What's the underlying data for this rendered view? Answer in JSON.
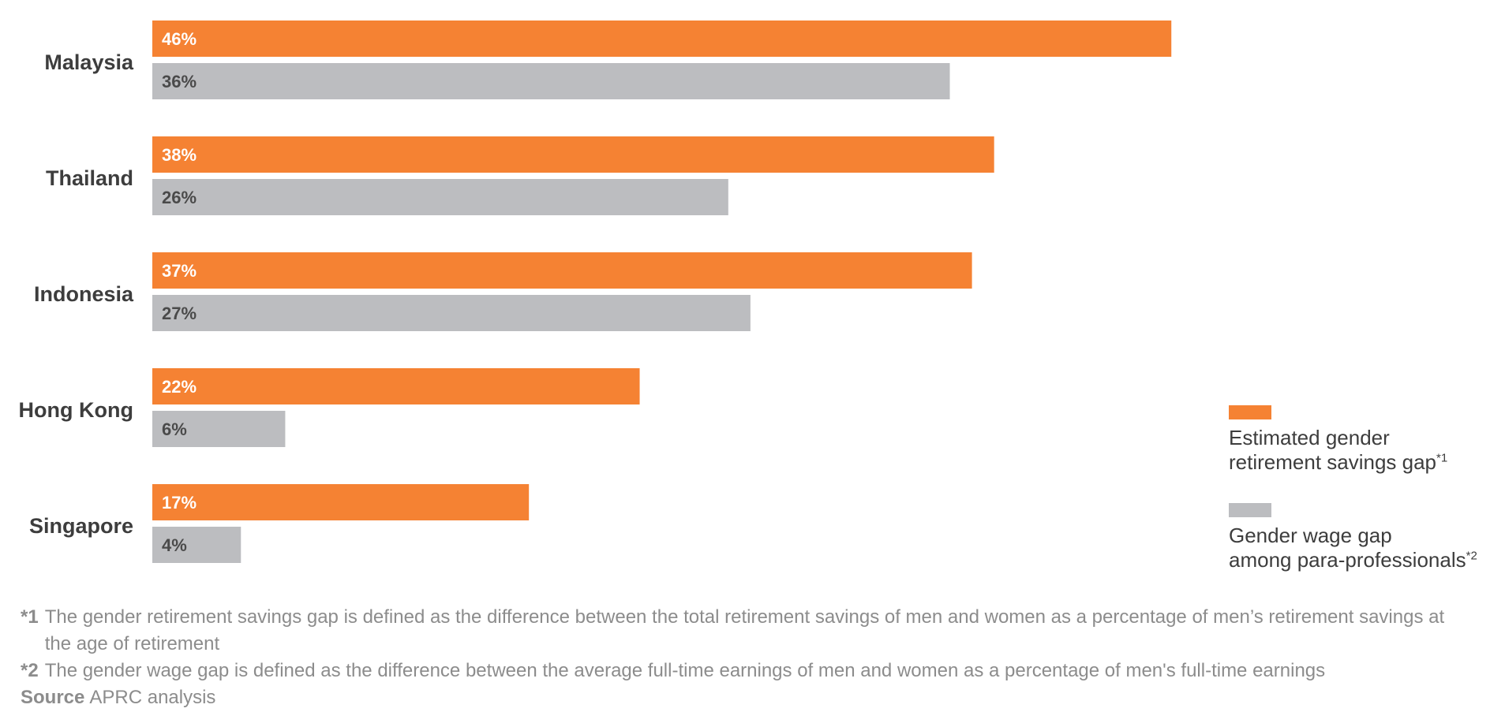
{
  "chart_data": {
    "type": "bar",
    "orientation": "horizontal",
    "categories": [
      "Malaysia",
      "Thailand",
      "Indonesia",
      "Hong Kong",
      "Singapore"
    ],
    "series": [
      {
        "name": "Estimated gender retirement savings gap*1",
        "values": [
          46,
          38,
          37,
          22,
          17
        ],
        "color": "#F58233"
      },
      {
        "name": "Gender wage gap among para-professionals*2",
        "values": [
          36,
          26,
          27,
          6,
          4
        ],
        "color": "#BCBDC0"
      }
    ],
    "value_labels": {
      "series_0": [
        "46%",
        "38%",
        "37%",
        "22%",
        "17%"
      ],
      "series_1": [
        "36%",
        "26%",
        "27%",
        "6%",
        "4%"
      ]
    },
    "value_label_colors": [
      "#ffffff",
      "#4a4a4a"
    ],
    "unit": "%",
    "xlim": [
      0,
      46
    ],
    "grid": false,
    "legend_position": "right"
  },
  "legend": {
    "items": [
      {
        "text": "Estimated gender\nretirement savings gap",
        "sup": "*1",
        "color": "#F58233"
      },
      {
        "text": "Gender wage gap\namong para-professionals",
        "sup": "*2",
        "color": "#BCBDC0"
      }
    ]
  },
  "notes": {
    "note1": {
      "mark": "*1",
      "text": "The gender retirement savings gap is defined as the difference between the total retirement savings of men and women as a percentage of men’s retirement savings at the age of retirement"
    },
    "note2": {
      "mark": "*2",
      "text": "The gender wage gap is defined as the difference between the average full-time earnings of men and women as a percentage of men's full-time earnings"
    },
    "source_label": "Source",
    "source_text": "APRC analysis"
  }
}
